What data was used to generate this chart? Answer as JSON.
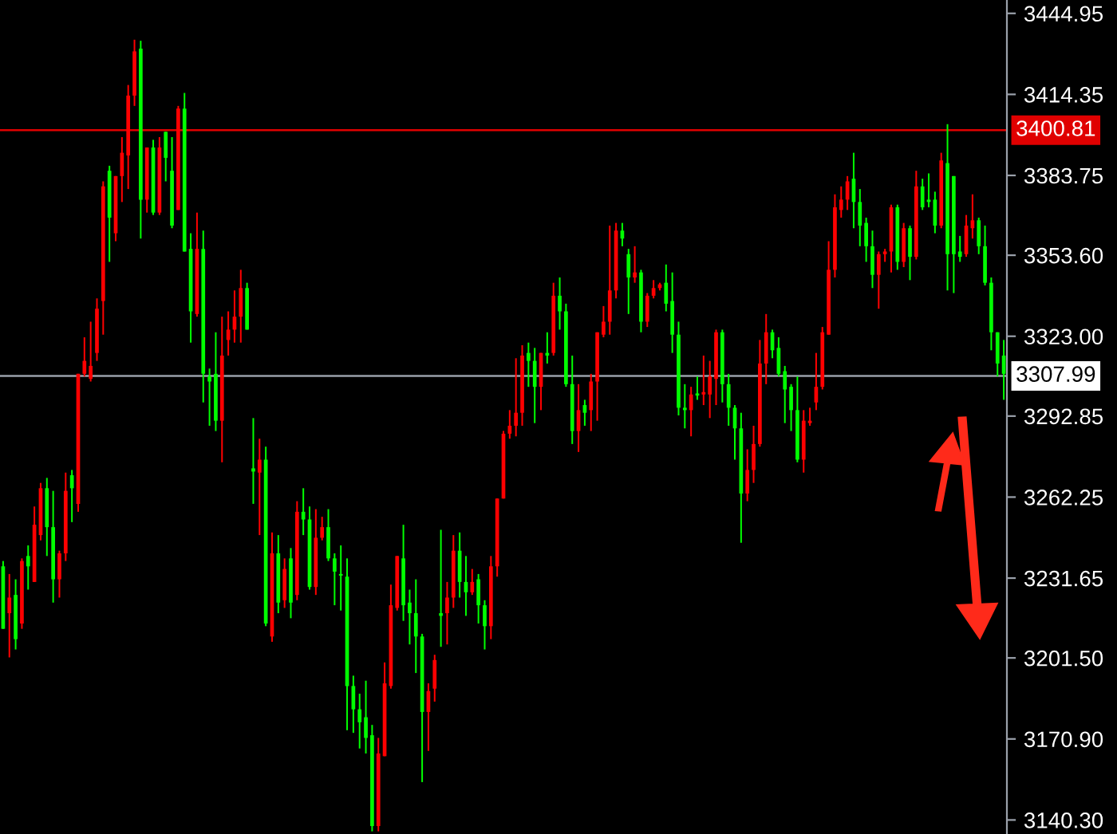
{
  "chart_data": {
    "type": "candlestick",
    "categories": [
      null,
      null,
      null,
      null,
      null,
      null,
      null,
      null,
      null,
      null,
      null,
      null,
      null,
      null,
      null,
      null,
      null,
      null,
      null,
      null,
      null,
      null,
      null,
      null,
      null,
      null,
      null,
      null,
      null,
      null,
      null,
      null,
      null,
      null,
      null,
      null,
      null,
      null,
      null,
      null,
      null,
      null,
      null,
      null,
      null,
      null,
      null,
      null,
      null,
      null,
      null,
      null,
      null,
      null,
      null,
      null,
      null,
      null,
      null,
      null,
      null,
      null,
      null,
      null,
      null,
      null,
      null,
      null,
      null,
      null,
      null,
      null,
      null,
      null,
      null,
      null,
      null,
      null,
      null,
      null,
      null,
      null,
      null,
      null,
      null,
      null,
      null,
      null,
      null,
      null,
      null,
      null,
      null,
      null,
      null,
      null,
      null,
      null,
      null,
      null,
      null,
      null,
      null,
      null,
      null,
      null,
      null,
      null,
      null,
      null,
      null,
      null,
      null,
      null,
      null,
      null,
      null,
      null,
      null,
      null,
      null,
      null,
      null,
      null,
      null,
      null,
      null,
      null,
      null,
      null,
      null,
      null,
      null,
      null,
      null,
      null,
      null,
      null,
      null,
      null,
      null,
      null,
      null,
      null,
      null,
      null,
      null,
      null,
      null,
      null,
      null,
      null,
      null,
      null,
      null,
      null,
      null,
      null,
      null,
      null,
      null
    ],
    "ohlc": [
      [
        3236.1,
        3238.1,
        3212.5,
        3212.5
      ],
      [
        3218.4,
        3233.2,
        3201.7,
        3224.3
      ],
      [
        3225.3,
        3231.2,
        3204.7,
        3208.6
      ],
      [
        3214.5,
        3239.1,
        3212.5,
        3238.1
      ],
      [
        3240.0,
        3244.0,
        3227.3,
        3236.1
      ],
      [
        3230.2,
        3258.7,
        3230.2,
        3251.8
      ],
      [
        3247.9,
        3267.6,
        3245.9,
        3265.6
      ],
      [
        3265.6,
        3269.5,
        3240.0,
        3250.9
      ],
      [
        3250.9,
        3264.6,
        3222.4,
        3231.2
      ],
      [
        3231.2,
        3242.0,
        3224.3,
        3241.0
      ],
      [
        3241.0,
        3271.5,
        3238.1,
        3264.6
      ],
      [
        3270.5,
        3272.5,
        3252.8,
        3265.6
      ],
      [
        3259.7,
        3308.8,
        3256.7,
        3308.8
      ],
      [
        3308.8,
        3322.6,
        3307.8,
        3313.7
      ],
      [
        3306.9,
        3328.5,
        3305.9,
        3311.8
      ],
      [
        3316.7,
        3337.3,
        3313.7,
        3333.4
      ],
      [
        3336.3,
        3381.5,
        3323.6,
        3379.6
      ],
      [
        3385.5,
        3387.4,
        3351.1,
        3367.8
      ],
      [
        3361.9,
        3383.5,
        3358.9,
        3383.5
      ],
      [
        3383.5,
        3398.2,
        3373.7,
        3392.3
      ],
      [
        3391.3,
        3417.9,
        3378.6,
        3413.9
      ],
      [
        3413.9,
        3435.0,
        3410.0,
        3430.6
      ],
      [
        3431.6,
        3434.6,
        3359.9,
        3374.6
      ],
      [
        3374.6,
        3394.3,
        3369.7,
        3394.3
      ],
      [
        3394.3,
        3397.2,
        3368.8,
        3369.7
      ],
      [
        3369.7,
        3398.2,
        3368.8,
        3394.3
      ],
      [
        3400.2,
        3400.2,
        3381.5,
        3390.4
      ],
      [
        3385.5,
        3398.2,
        3363.8,
        3364.8
      ],
      [
        3370.7,
        3410.0,
        3370.7,
        3409.0
      ],
      [
        3409.0,
        3414.9,
        3355.0,
        3355.0
      ],
      [
        3356.0,
        3361.9,
        3320.6,
        3332.4
      ],
      [
        3331.4,
        3369.7,
        3330.4,
        3356.0
      ],
      [
        3356.0,
        3362.9,
        3298.0,
        3308.8
      ],
      [
        3307.8,
        3310.8,
        3289.2,
        3305.9
      ],
      [
        3308.8,
        3324.5,
        3287.2,
        3291.1
      ],
      [
        3291.1,
        3330.4,
        3275.4,
        3315.7
      ],
      [
        3321.6,
        3332.4,
        3315.7,
        3325.5
      ],
      [
        3325.5,
        3340.3,
        3320.6,
        3330.4
      ],
      [
        3330.4,
        3348.1,
        3320.6,
        3341.2
      ],
      [
        3341.2,
        3343.2,
        3325.5,
        3325.5
      ],
      [
        3273.1,
        3292.1,
        3259.7,
        3271.9
      ],
      [
        3271.5,
        3284.3,
        3247.9,
        3276.4
      ],
      [
        3276.4,
        3281.3,
        3213.5,
        3214.5
      ],
      [
        3209.6,
        3248.9,
        3207.6,
        3241.0
      ],
      [
        3241.0,
        3247.9,
        3218.4,
        3222.4
      ],
      [
        3223.3,
        3239.1,
        3220.4,
        3235.1
      ],
      [
        3239.1,
        3243.0,
        3216.5,
        3222.4
      ],
      [
        3225.3,
        3260.7,
        3223.3,
        3256.7
      ],
      [
        3256.7,
        3265.6,
        3247.9,
        3253.8
      ],
      [
        3253.8,
        3258.7,
        3227.3,
        3228.3
      ],
      [
        3228.3,
        3257.7,
        3225.3,
        3246.9
      ],
      [
        3246.9,
        3254.8,
        3245.9,
        3250.9
      ],
      [
        3250.9,
        3257.7,
        3238.1,
        3239.1
      ],
      [
        3239.1,
        3241.0,
        3221.4,
        3234.1
      ],
      [
        3233.2,
        3244.0,
        3219.4,
        3232.6
      ],
      [
        3232.2,
        3239.1,
        3174.2,
        3190.9
      ],
      [
        3190.9,
        3194.8,
        3173.2,
        3182.1
      ],
      [
        3182.1,
        3188.0,
        3167.3,
        3177.2
      ],
      [
        3179.1,
        3192.9,
        3165.4,
        3171.3
      ],
      [
        3172.3,
        3176.2,
        3136.0,
        3138.0
      ],
      [
        3138.0,
        3171.3,
        3136.0,
        3165.4
      ],
      [
        3164.4,
        3199.8,
        3164.4,
        3191.9
      ],
      [
        3190.9,
        3229.2,
        3189.9,
        3221.4
      ],
      [
        3220.4,
        3240.0,
        3219.4,
        3240.0
      ],
      [
        3239.1,
        3251.8,
        3215.5,
        3221.4
      ],
      [
        3222.4,
        3227.3,
        3206.6,
        3218.4
      ],
      [
        3218.4,
        3231.2,
        3195.8,
        3209.6
      ],
      [
        3209.6,
        3210.6,
        3154.6,
        3181.1
      ],
      [
        3181.1,
        3191.9,
        3166.4,
        3189.0
      ],
      [
        3189.9,
        3202.7,
        3185.0,
        3200.7
      ],
      [
        3218.4,
        3249.9,
        3205.7,
        3217.4
      ],
      [
        3218.4,
        3230.2,
        3206.6,
        3224.3
      ],
      [
        3224.3,
        3247.9,
        3220.4,
        3242.0
      ],
      [
        3242.0,
        3248.9,
        3224.3,
        3230.2
      ],
      [
        3230.2,
        3240.0,
        3217.4,
        3226.3
      ],
      [
        3226.3,
        3235.1,
        3225.3,
        3230.2
      ],
      [
        3231.2,
        3233.2,
        3214.5,
        3221.4
      ],
      [
        3221.4,
        3223.3,
        3204.7,
        3213.5
      ],
      [
        3213.5,
        3240.0,
        3208.6,
        3236.1
      ],
      [
        3236.1,
        3261.7,
        3232.2,
        3261.7
      ],
      [
        3261.7,
        3287.2,
        3261.7,
        3286.2
      ],
      [
        3286.2,
        3295.1,
        3284.3,
        3289.2
      ],
      [
        3289.2,
        3314.7,
        3285.2,
        3294.1
      ],
      [
        3294.1,
        3319.6,
        3289.2,
        3315.7
      ],
      [
        3316.7,
        3320.6,
        3303.9,
        3313.7
      ],
      [
        3313.7,
        3318.6,
        3290.2,
        3303.9
      ],
      [
        3303.9,
        3316.7,
        3295.1,
        3316.7
      ],
      [
        3316.7,
        3324.5,
        3312.7,
        3315.7
      ],
      [
        3316.7,
        3343.2,
        3315.7,
        3338.3
      ],
      [
        3338.3,
        3345.2,
        3325.5,
        3332.4
      ],
      [
        3332.4,
        3335.3,
        3303.9,
        3304.9
      ],
      [
        3304.9,
        3315.7,
        3282.3,
        3287.2
      ],
      [
        3287.2,
        3304.9,
        3279.3,
        3295.1
      ],
      [
        3297.0,
        3299.0,
        3289.2,
        3294.1
      ],
      [
        3295.1,
        3308.8,
        3287.2,
        3305.9
      ],
      [
        3305.9,
        3324.5,
        3291.1,
        3324.5
      ],
      [
        3323.6,
        3334.4,
        3322.6,
        3328.5
      ],
      [
        3328.5,
        3364.8,
        3323.6,
        3340.3
      ],
      [
        3340.3,
        3365.8,
        3337.3,
        3362.9
      ],
      [
        3362.9,
        3365.8,
        3357.0,
        3359.9
      ],
      [
        3354.0,
        3356.0,
        3331.4,
        3345.2
      ],
      [
        3345.2,
        3357.0,
        3343.2,
        3347.1
      ],
      [
        3347.1,
        3348.1,
        3324.5,
        3328.5
      ],
      [
        3328.5,
        3339.3,
        3326.5,
        3338.3
      ],
      [
        3338.3,
        3344.2,
        3337.3,
        3341.2
      ],
      [
        3341.2,
        3343.2,
        3340.3,
        3342.6
      ],
      [
        3343.2,
        3350.1,
        3332.4,
        3335.3
      ],
      [
        3336.3,
        3347.1,
        3316.7,
        3323.6
      ],
      [
        3323.6,
        3328.5,
        3293.1,
        3296.0
      ],
      [
        3296.0,
        3304.9,
        3288.2,
        3295.1
      ],
      [
        3295.1,
        3303.9,
        3285.2,
        3301.0
      ],
      [
        3301.4,
        3307.8,
        3299.0,
        3300.6
      ],
      [
        3301.0,
        3315.7,
        3297.0,
        3301.9
      ],
      [
        3301.0,
        3313.7,
        3292.1,
        3307.8
      ],
      [
        3306.9,
        3325.5,
        3297.0,
        3324.5
      ],
      [
        3324.5,
        3325.5,
        3298.0,
        3304.9
      ],
      [
        3304.9,
        3308.8,
        3289.2,
        3296.0
      ],
      [
        3296.0,
        3297.0,
        3276.4,
        3288.2
      ],
      [
        3288.2,
        3294.1,
        3245.0,
        3263.6
      ],
      [
        3263.6,
        3280.3,
        3260.7,
        3272.5
      ],
      [
        3272.5,
        3289.2,
        3267.6,
        3282.3
      ],
      [
        3282.3,
        3321.6,
        3281.3,
        3312.7
      ],
      [
        3312.7,
        3331.4,
        3304.9,
        3324.5
      ],
      [
        3324.5,
        3325.5,
        3314.7,
        3317.7
      ],
      [
        3318.6,
        3322.6,
        3307.8,
        3308.8
      ],
      [
        3309.8,
        3311.8,
        3290.2,
        3302.9
      ],
      [
        3303.9,
        3304.9,
        3287.2,
        3295.1
      ],
      [
        3295.1,
        3307.8,
        3275.4,
        3276.4
      ],
      [
        3276.4,
        3295.1,
        3271.5,
        3291.1
      ],
      [
        3290.2,
        3296.0,
        3289.2,
        3291.1
      ],
      [
        3298.0,
        3316.7,
        3295.1,
        3303.9
      ],
      [
        3303.9,
        3326.5,
        3302.9,
        3324.5
      ],
      [
        3323.6,
        3358.9,
        3323.6,
        3348.1
      ],
      [
        3348.1,
        3376.6,
        3345.2,
        3371.7
      ],
      [
        3370.7,
        3379.6,
        3367.8,
        3374.6
      ],
      [
        3374.6,
        3383.5,
        3370.7,
        3381.5
      ],
      [
        3382.5,
        3392.3,
        3363.8,
        3373.7
      ],
      [
        3373.7,
        3378.6,
        3357.0,
        3364.8
      ],
      [
        3365.8,
        3367.8,
        3351.1,
        3357.0
      ],
      [
        3357.0,
        3362.9,
        3341.2,
        3346.2
      ],
      [
        3346.2,
        3355.0,
        3333.4,
        3354.0
      ],
      [
        3354.0,
        3356.0,
        3351.1,
        3355.0
      ],
      [
        3355.0,
        3372.7,
        3347.1,
        3371.7
      ],
      [
        3371.7,
        3372.7,
        3348.1,
        3351.1
      ],
      [
        3351.1,
        3365.8,
        3349.1,
        3363.8
      ],
      [
        3363.8,
        3364.8,
        3344.2,
        3353.0
      ],
      [
        3353.0,
        3385.5,
        3352.0,
        3379.6
      ],
      [
        3379.6,
        3382.5,
        3370.7,
        3371.7
      ],
      [
        3374.6,
        3384.5,
        3371.7,
        3373.7
      ],
      [
        3374.6,
        3377.6,
        3361.9,
        3364.8
      ],
      [
        3364.8,
        3392.3,
        3363.8,
        3389.4
      ],
      [
        3388.4,
        3403.1,
        3340.3,
        3354.0
      ],
      [
        3383.5,
        3383.5,
        3339.3,
        3354.0
      ],
      [
        3355.0,
        3360.9,
        3351.1,
        3353.0
      ],
      [
        3354.0,
        3368.8,
        3353.0,
        3364.8
      ],
      [
        3363.8,
        3376.6,
        3359.9,
        3366.8
      ],
      [
        3366.8,
        3367.8,
        3354.0,
        3357.0
      ],
      [
        3357.0,
        3364.8,
        3342.2,
        3343.2
      ],
      [
        3343.2,
        3345.2,
        3317.7,
        3324.5
      ],
      [
        3324.5,
        3324.5,
        3307.8,
        3312.7
      ],
      [
        3315.7,
        3321.6,
        3299.0,
        3308.8
      ]
    ],
    "colors": [
      "#00ff00",
      "#ff0000",
      "#00ff00",
      "#ff0000",
      "#00ff00",
      "#ff0000",
      "#ff0000",
      "#00ff00",
      "#00ff00",
      "#ff0000",
      "#ff0000",
      "#00ff00",
      "#ff0000",
      "#ff0000",
      "#ff0000",
      "#ff0000",
      "#ff0000",
      "#00ff00",
      "#ff0000",
      "#ff0000",
      "#ff0000",
      "#ff0000",
      "#00ff00",
      "#ff0000",
      "#00ff00",
      "#ff0000",
      "#00ff00",
      "#00ff00",
      "#ff0000",
      "#00ff00",
      "#00ff00",
      "#ff0000",
      "#00ff00",
      "#00ff00",
      "#00ff00",
      "#ff0000",
      "#ff0000",
      "#ff0000",
      "#ff0000",
      "#00ff00",
      "#00ff00",
      "#ff0000",
      "#00ff00",
      "#ff0000",
      "#00ff00",
      "#ff0000",
      "#00ff00",
      "#ff0000",
      "#00ff00",
      "#00ff00",
      "#ff0000",
      "#ff0000",
      "#00ff00",
      "#00ff00",
      "#00ff00",
      "#00ff00",
      "#00ff00",
      "#00ff00",
      "#00ff00",
      "#00ff00",
      "#ff0000",
      "#ff0000",
      "#ff0000",
      "#ff0000",
      "#00ff00",
      "#00ff00",
      "#00ff00",
      "#00ff00",
      "#ff0000",
      "#ff0000",
      "#00ff00",
      "#ff0000",
      "#ff0000",
      "#00ff00",
      "#00ff00",
      "#ff0000",
      "#00ff00",
      "#00ff00",
      "#ff0000",
      "#ff0000",
      "#ff0000",
      "#ff0000",
      "#ff0000",
      "#ff0000",
      "#00ff00",
      "#00ff00",
      "#ff0000",
      "#00ff00",
      "#ff0000",
      "#00ff00",
      "#00ff00",
      "#00ff00",
      "#ff0000",
      "#00ff00",
      "#ff0000",
      "#ff0000",
      "#ff0000",
      "#ff0000",
      "#ff0000",
      "#00ff00",
      "#00ff00",
      "#ff0000",
      "#00ff00",
      "#ff0000",
      "#ff0000",
      "#ff0000",
      "#00ff00",
      "#00ff00",
      "#00ff00",
      "#00ff00",
      "#ff0000",
      "#00ff00",
      "#ff0000",
      "#ff0000",
      "#ff0000",
      "#00ff00",
      "#00ff00",
      "#00ff00",
      "#00ff00",
      "#ff0000",
      "#ff0000",
      "#ff0000",
      "#ff0000",
      "#00ff00",
      "#00ff00",
      "#00ff00",
      "#00ff00",
      "#00ff00",
      "#ff0000",
      "#ff0000",
      "#ff0000",
      "#ff0000",
      "#ff0000",
      "#ff0000",
      "#ff0000",
      "#ff0000",
      "#00ff00",
      "#00ff00",
      "#00ff00",
      "#00ff00",
      "#ff0000",
      "#ff0000",
      "#ff0000",
      "#00ff00",
      "#ff0000",
      "#00ff00",
      "#ff0000",
      "#00ff00",
      "#00ff00",
      "#00ff00",
      "#ff0000",
      "#00ff00",
      "#00ff00",
      "#00ff00",
      "#ff0000",
      "#ff0000",
      "#00ff00",
      "#00ff00",
      "#00ff00",
      "#00ff00",
      "#00ff00"
    ],
    "ylim": [
      3135,
      3450
    ],
    "yticks": [
      3444.95,
      3414.35,
      3383.75,
      {
        "value": 3353.6,
        "label": "3353.60"
      },
      {
        "value": 3323.0,
        "label": "3323.00"
      },
      3292.85,
      3262.25,
      3231.65,
      {
        "value": 3201.5,
        "label": "3201.50"
      },
      {
        "value": 3170.9,
        "label": "3170.90"
      },
      {
        "value": 3140.3,
        "label": "3140.30"
      }
    ],
    "tick_labels": "y",
    "ref_lines": [
      {
        "axis": "y",
        "value": 3400.81,
        "label": "3400.81",
        "color": "#e00000"
      },
      {
        "axis": "y",
        "value": 3307.99,
        "label": "3307.99",
        "color": "#9aa0aa"
      }
    ]
  }
}
